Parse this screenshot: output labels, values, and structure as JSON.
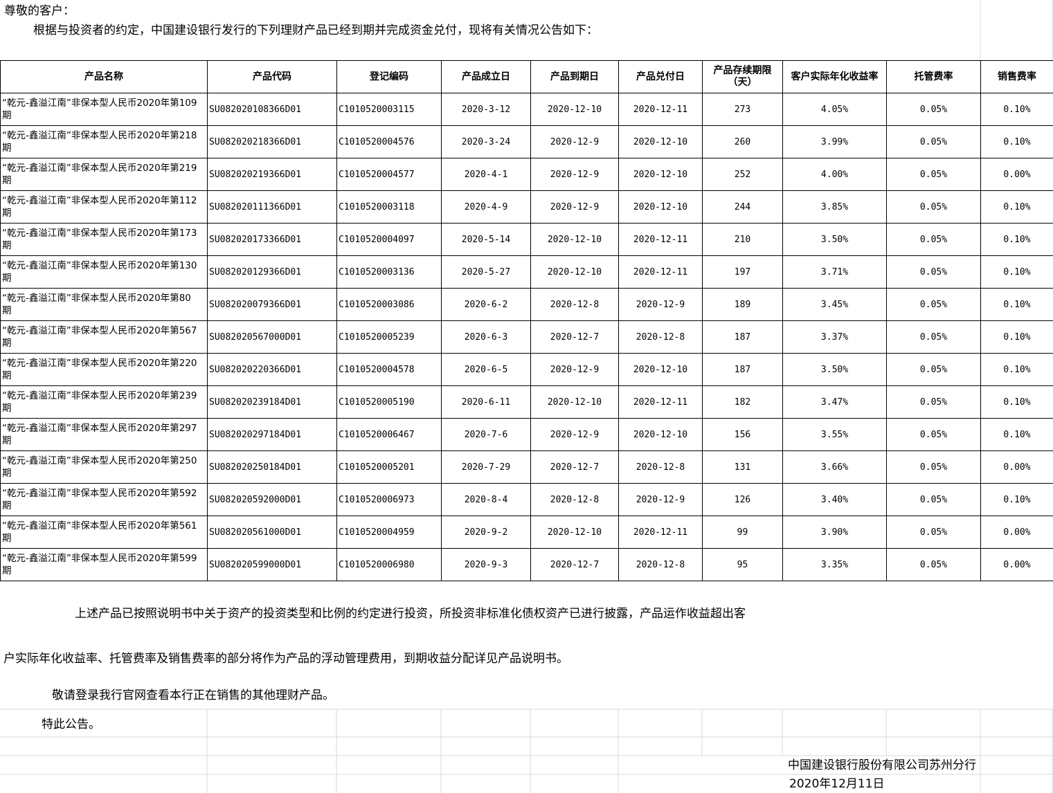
{
  "greeting": "尊敬的客户：",
  "intro": "根据与投资者的约定，中国建设银行发行的下列理财产品已经到期并完成资金兑付，现将有关情况公告如下：",
  "table": {
    "columns": [
      "产品名称",
      "产品代码",
      "登记编码",
      "产品成立日",
      "产品到期日",
      "产品兑付日",
      "产品存续期限（天）",
      "客户实际年化收益率",
      "托管费率",
      "销售费率"
    ],
    "rows": [
      [
        "“乾元-鑫溢江南”非保本型人民币2020年第109期",
        "SU082020108366D01",
        "C1010520003115",
        "2020-3-12",
        "2020-12-10",
        "2020-12-11",
        273,
        "4.05%",
        "0.05%",
        "0.10%"
      ],
      [
        "“乾元-鑫溢江南”非保本型人民币2020年第218期",
        "SU082020218366D01",
        "C1010520004576",
        "2020-3-24",
        "2020-12-9",
        "2020-12-10",
        260,
        "3.99%",
        "0.05%",
        "0.10%"
      ],
      [
        "“乾元-鑫溢江南”非保本型人民币2020年第219期",
        "SU082020219366D01",
        "C1010520004577",
        "2020-4-1",
        "2020-12-9",
        "2020-12-10",
        252,
        "4.00%",
        "0.05%",
        "0.00%"
      ],
      [
        "“乾元-鑫溢江南”非保本型人民币2020年第112期",
        "SU082020111366D01",
        "C1010520003118",
        "2020-4-9",
        "2020-12-9",
        "2020-12-10",
        244,
        "3.85%",
        "0.05%",
        "0.10%"
      ],
      [
        "“乾元-鑫溢江南”非保本型人民币2020年第173期",
        "SU082020173366D01",
        "C1010520004097",
        "2020-5-14",
        "2020-12-10",
        "2020-12-11",
        210,
        "3.50%",
        "0.05%",
        "0.10%"
      ],
      [
        "“乾元-鑫溢江南”非保本型人民币2020年第130期",
        "SU082020129366D01",
        "C1010520003136",
        "2020-5-27",
        "2020-12-10",
        "2020-12-11",
        197,
        "3.71%",
        "0.05%",
        "0.10%"
      ],
      [
        "“乾元-鑫溢江南”非保本型人民币2020年第80期",
        "SU082020079366D01",
        "C1010520003086",
        "2020-6-2",
        "2020-12-8",
        "2020-12-9",
        189,
        "3.45%",
        "0.05%",
        "0.10%"
      ],
      [
        "“乾元-鑫溢江南”非保本型人民币2020年第567期",
        "SU082020567000D01",
        "C1010520005239",
        "2020-6-3",
        "2020-12-7",
        "2020-12-8",
        187,
        "3.37%",
        "0.05%",
        "0.10%"
      ],
      [
        "“乾元-鑫溢江南”非保本型人民币2020年第220期",
        "SU082020220366D01",
        "C1010520004578",
        "2020-6-5",
        "2020-12-9",
        "2020-12-10",
        187,
        "3.50%",
        "0.05%",
        "0.10%"
      ],
      [
        "“乾元-鑫溢江南”非保本型人民币2020年第239期",
        "SU082020239184D01",
        "C1010520005190",
        "2020-6-11",
        "2020-12-10",
        "2020-12-11",
        182,
        "3.47%",
        "0.05%",
        "0.10%"
      ],
      [
        "“乾元-鑫溢江南”非保本型人民币2020年第297期",
        "SU082020297184D01",
        "C1010520006467",
        "2020-7-6",
        "2020-12-9",
        "2020-12-10",
        156,
        "3.55%",
        "0.05%",
        "0.10%"
      ],
      [
        "“乾元-鑫溢江南”非保本型人民币2020年第250期",
        "SU082020250184D01",
        "C1010520005201",
        "2020-7-29",
        "2020-12-7",
        "2020-12-8",
        131,
        "3.66%",
        "0.05%",
        "0.00%"
      ],
      [
        "“乾元-鑫溢江南”非保本型人民币2020年第592期",
        "SU082020592000D01",
        "C1010520006973",
        "2020-8-4",
        "2020-12-8",
        "2020-12-9",
        126,
        "3.40%",
        "0.05%",
        "0.10%"
      ],
      [
        "“乾元-鑫溢江南”非保本型人民币2020年第561期",
        "SU082020561000D01",
        "C1010520004959",
        "2020-9-2",
        "2020-12-10",
        "2020-12-11",
        99,
        "3.90%",
        "0.05%",
        "0.00%"
      ],
      [
        "“乾元-鑫溢江南”非保本型人民币2020年第599期",
        "SU082020599000D01",
        "C1010520006980",
        "2020-9-3",
        "2020-12-7",
        "2020-12-8",
        95,
        "3.35%",
        "0.05%",
        "0.00%"
      ]
    ]
  },
  "paragraphs": [
    "上述产品已按照说明书中关于资产的投资类型和比例的约定进行投资，所投资非标准化债权资产已进行披露，产品运作收益超出客",
    "户实际年化收益率、托管费率及销售费率的部分将作为产品的浮动管理费用，到期收益分配详见产品说明书。",
    "敬请登录我行官网查看本行正在销售的其他理财产品。"
  ],
  "closing": "特此公告。",
  "signature": {
    "org": "中国建设银行股份有限公司苏州分行",
    "date": "2020年12月11日"
  }
}
